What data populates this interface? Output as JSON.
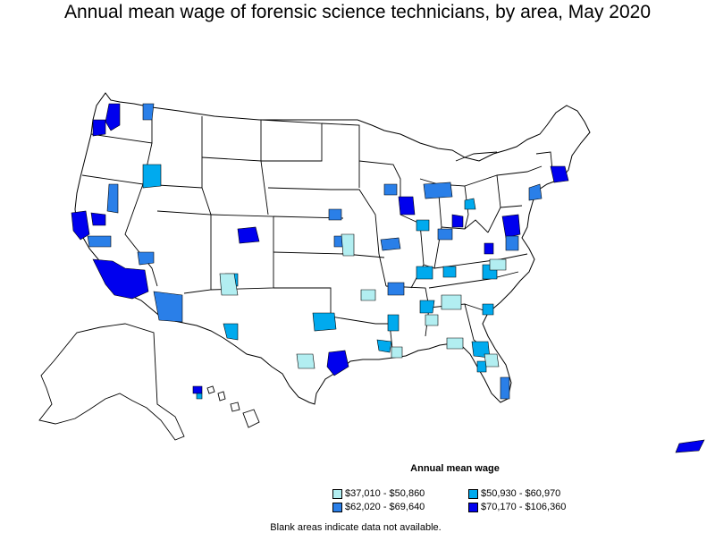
{
  "title": "Annual mean wage of forensic science technicians, by area, May 2020",
  "legend": {
    "title": "Annual mean wage",
    "items": [
      {
        "label": "$37,010 - $50,860",
        "color": "#b2eef1"
      },
      {
        "label": "$50,930 - $60,970",
        "color": "#00aaee"
      },
      {
        "label": "$62,020 - $69,640",
        "color": "#2a7fe8"
      },
      {
        "label": "$70,170 - $106,360",
        "color": "#0000ee"
      }
    ]
  },
  "note": "Blank areas indicate data not available.",
  "colors": {
    "tier1": "#b2eef1",
    "tier2": "#00aaee",
    "tier3": "#2a7fe8",
    "tier4": "#0000ee",
    "boundary": "#000000",
    "background": "#ffffff"
  }
}
